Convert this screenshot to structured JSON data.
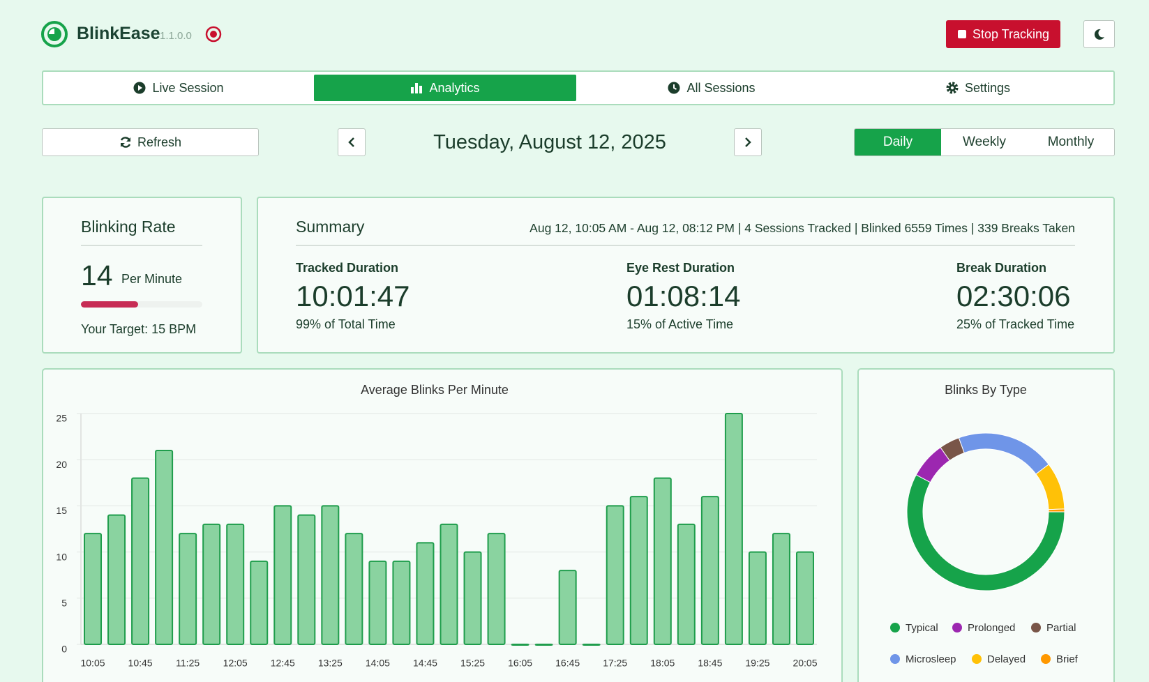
{
  "header": {
    "app_name": "BlinkEase",
    "version": "1.1.0.0",
    "stop_button": "Stop Tracking"
  },
  "tabs": [
    "Live Session",
    "Analytics",
    "All Sessions",
    "Settings"
  ],
  "controls": {
    "refresh": "Refresh",
    "date": "Tuesday, August 12, 2025",
    "periods": [
      "Daily",
      "Weekly",
      "Monthly"
    ]
  },
  "blinking_rate": {
    "title": "Blinking Rate",
    "value": 14,
    "unit": "Per Minute",
    "target": "Your Target: 15 BPM"
  },
  "summary": {
    "title": "Summary",
    "info": "Aug 12, 10:05 AM - Aug 12, 08:12 PM | 4 Sessions Tracked | Blinked 6559 Times | 339 Breaks Taken",
    "metrics": [
      {
        "label": "Tracked Duration",
        "value": "10:01:47",
        "note": "99% of Total Time"
      },
      {
        "label": "Eye Rest Duration",
        "value": "01:08:14",
        "note": "15% of Active Time"
      },
      {
        "label": "Break Duration",
        "value": "02:30:06",
        "note": "25% of Tracked Time"
      }
    ]
  },
  "chart_data": [
    {
      "type": "bar",
      "title": "Average Blinks Per Minute",
      "categories": [
        "10:05",
        null,
        "10:45",
        null,
        "11:25",
        null,
        "12:05",
        null,
        "12:45",
        null,
        "13:25",
        null,
        "14:05",
        null,
        "14:45",
        null,
        "15:25",
        null,
        "16:05",
        null,
        "16:45",
        null,
        "17:25",
        null,
        "18:05",
        null,
        "18:45",
        null,
        "19:25",
        null,
        "20:05"
      ],
      "values": [
        12,
        14,
        18,
        21,
        12,
        13,
        13,
        9,
        15,
        14,
        15,
        12,
        9,
        9,
        11,
        13,
        10,
        12,
        0,
        0,
        8,
        0,
        15,
        16,
        18,
        13,
        16,
        25,
        10,
        12,
        10
      ],
      "color": "#8ad3a0",
      "border_color": "#1f9d4c",
      "ylim": [
        0,
        25
      ],
      "yticks": [
        0,
        5,
        10,
        15,
        20,
        25
      ],
      "grid": true
    },
    {
      "type": "donut",
      "title": "Blinks By Type",
      "categories": [
        "Typical",
        "Prolonged",
        "Partial",
        "Microsleep",
        "Delayed",
        "Brief"
      ],
      "values": [
        3790,
        490,
        275,
        1330,
        636,
        38
      ],
      "colors": [
        "#16a34a",
        "#9c27b0",
        "#795548",
        "#6f95e8",
        "#ffc107",
        "#ff9800"
      ],
      "legend": "bottom"
    }
  ]
}
